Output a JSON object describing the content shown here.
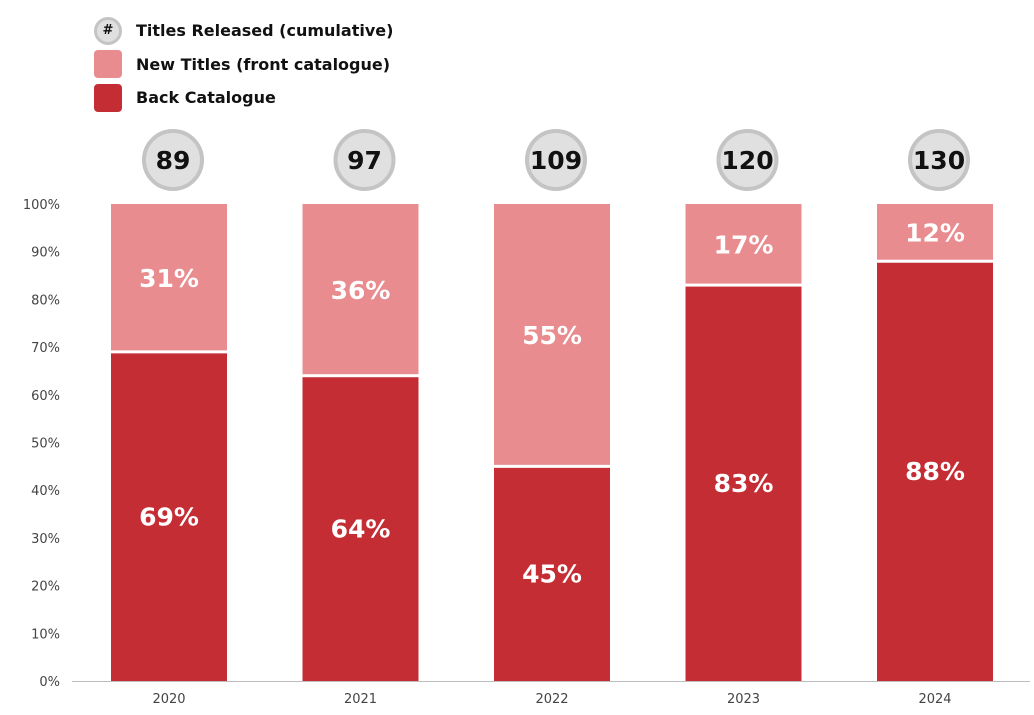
{
  "legend": {
    "total_symbol": "#",
    "total_label": "Titles Released (cumulative)",
    "new_label": "New Titles (front catalogue)",
    "back_label": "Back Catalogue"
  },
  "colors": {
    "new": "#E88C8F",
    "back": "#C52D35",
    "circle_fill": "#E0E0E0",
    "circle_stroke": "#C4C4C4",
    "axis_text": "#444444"
  },
  "chart_data": {
    "type": "bar",
    "stacked": true,
    "categories": [
      "2020",
      "2021",
      "2022",
      "2023",
      "2024"
    ],
    "series": [
      {
        "name": "Back Catalogue",
        "values": [
          69,
          64,
          45,
          83,
          88
        ],
        "labels": [
          "69%",
          "64%",
          "45%",
          "83%",
          "88%"
        ]
      },
      {
        "name": "New Titles (front catalogue)",
        "values": [
          31,
          36,
          55,
          17,
          12
        ],
        "labels": [
          "31%",
          "36%",
          "55%",
          "17%",
          "12%"
        ]
      }
    ],
    "totals": {
      "name": "Titles Released (cumulative)",
      "values": [
        89,
        97,
        109,
        120,
        130
      ]
    },
    "yticks": [
      "0%",
      "10%",
      "20%",
      "30%",
      "40%",
      "50%",
      "60%",
      "70%",
      "80%",
      "90%",
      "100%"
    ],
    "ylim": [
      0,
      100
    ],
    "grid": false,
    "legend_position": "top-left"
  }
}
